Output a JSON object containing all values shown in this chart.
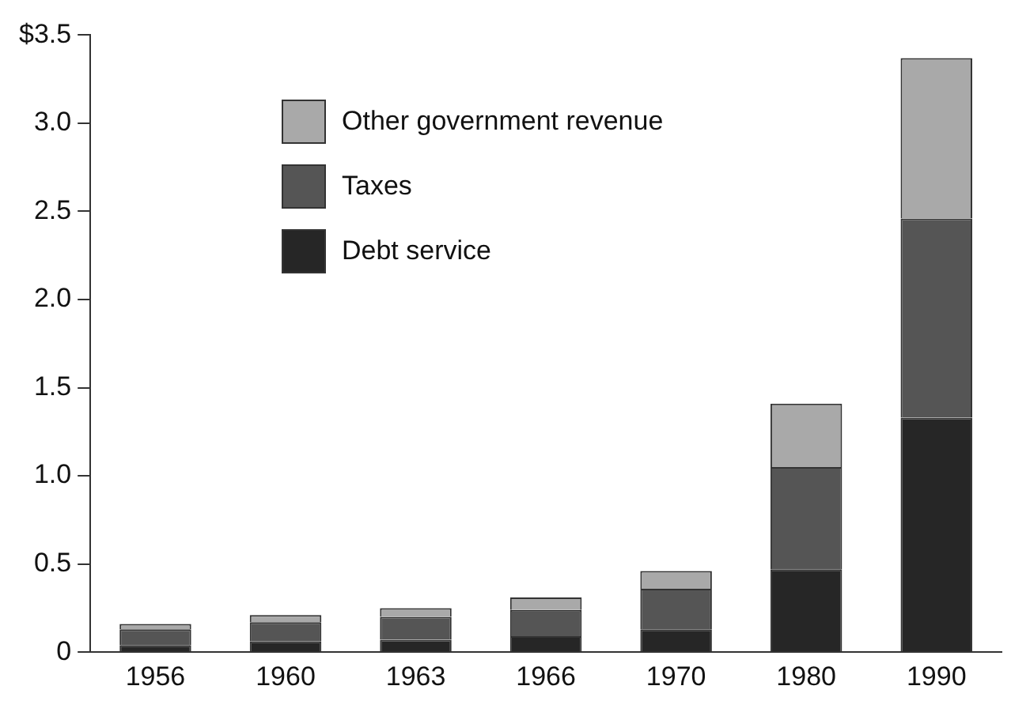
{
  "chart_data": {
    "type": "bar",
    "stacked": true,
    "categories": [
      "1956",
      "1960",
      "1963",
      "1966",
      "1970",
      "1980",
      "1990"
    ],
    "series": [
      {
        "name": "Debt service",
        "color": "#262626",
        "values": [
          0.04,
          0.06,
          0.07,
          0.09,
          0.13,
          0.47,
          1.33
        ]
      },
      {
        "name": "Taxes",
        "color": "#555555",
        "values": [
          0.09,
          0.11,
          0.13,
          0.15,
          0.23,
          0.58,
          1.13
        ]
      },
      {
        "name": "Other government revenue",
        "color": "#a9a9a9",
        "values": [
          0.03,
          0.04,
          0.05,
          0.07,
          0.1,
          0.36,
          0.91
        ]
      }
    ],
    "ylim": [
      0,
      3.5
    ],
    "yticks": [
      0,
      0.5,
      {
        "value": 1,
        "label": "1.0"
      },
      1.5,
      {
        "value": 2,
        "label": "2.0"
      },
      2.5,
      {
        "value": 3,
        "label": "3.0"
      },
      {
        "value": 3.5,
        "label": "$3.5"
      }
    ],
    "grid": false,
    "legend": "top left"
  }
}
